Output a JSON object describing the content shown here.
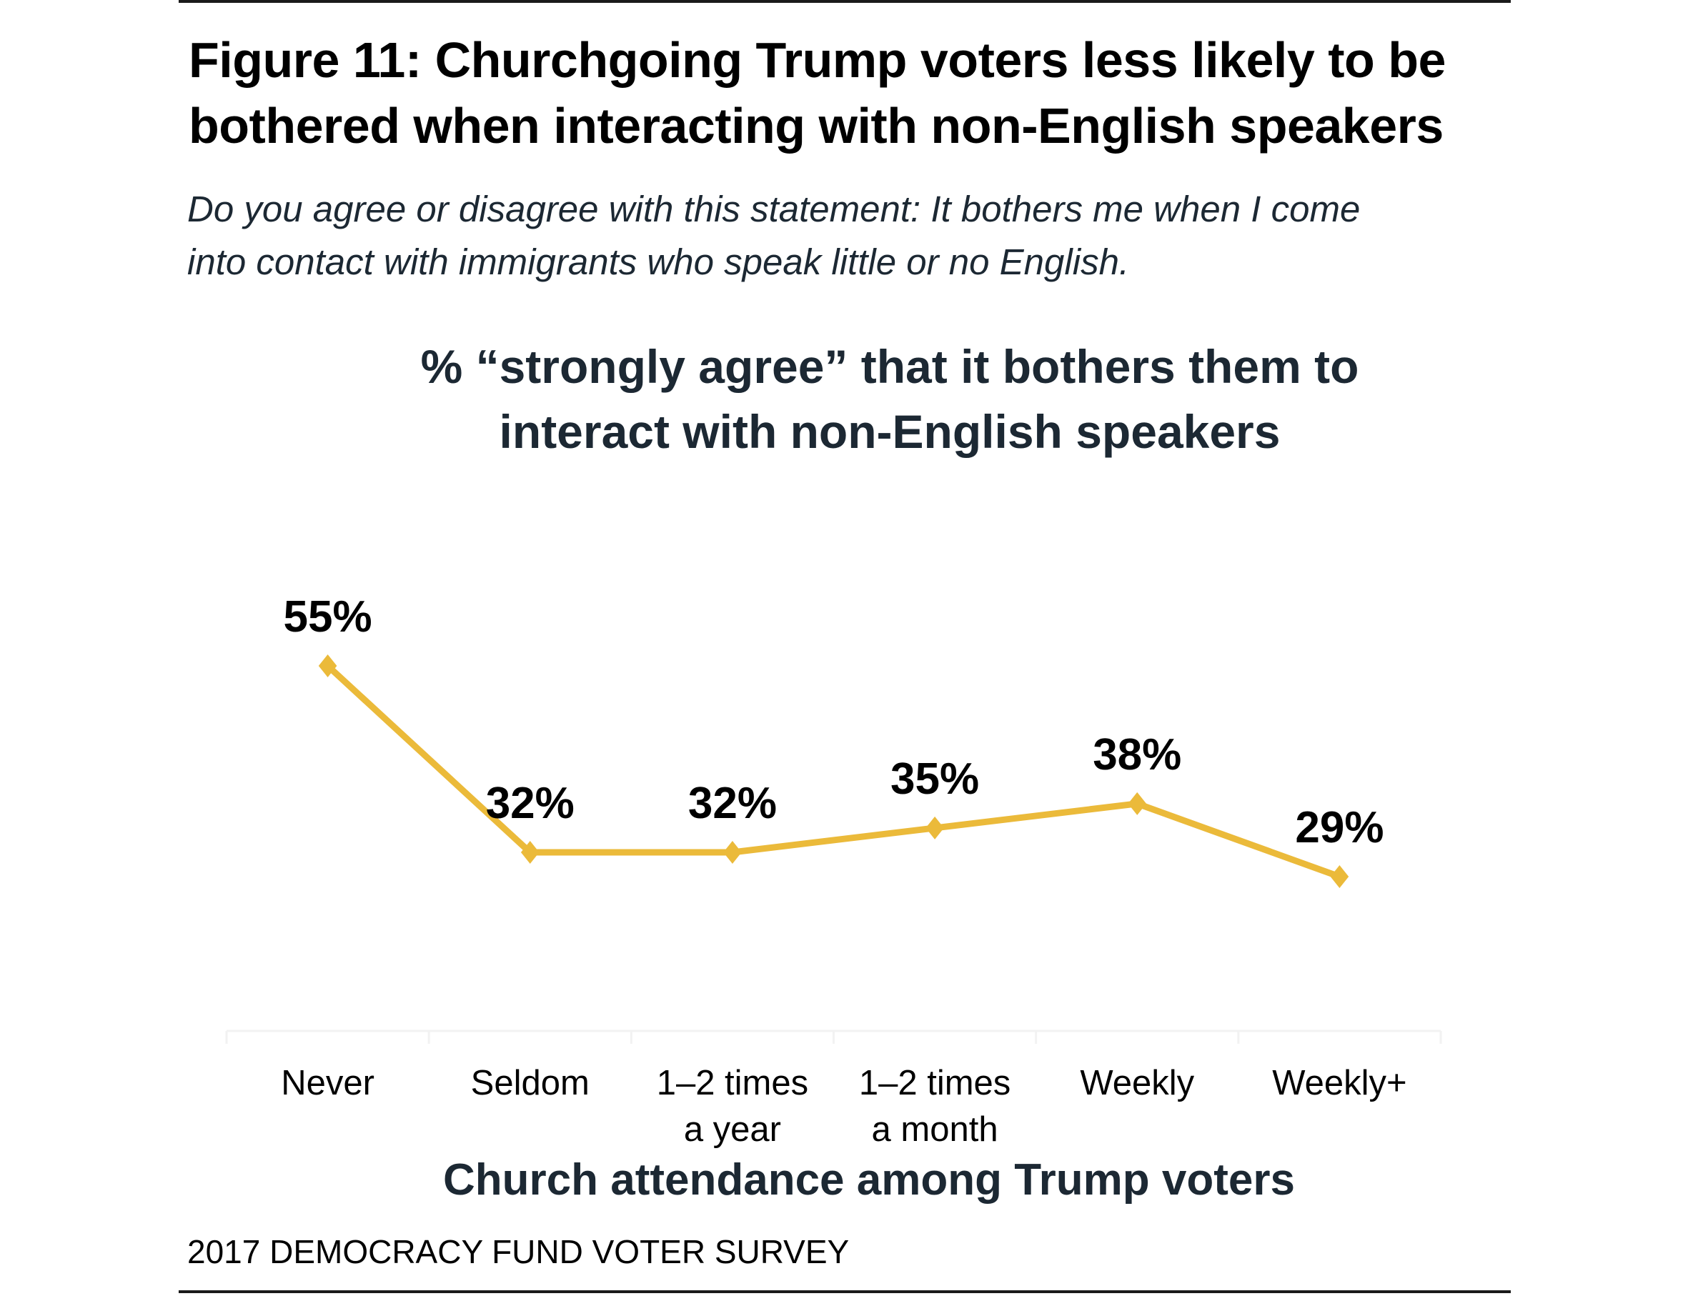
{
  "figure": {
    "title_lines": [
      "Figure 11: Churchgoing Trump voters less likely to be",
      "bothered when interacting with non-English speakers"
    ],
    "question_lines": [
      "Do you agree or disagree with this statement: It bothers me when I come",
      "into contact with immigrants who speak little or no English."
    ],
    "source": "2017 DEMOCRACY FUND VOTER SURVEY"
  },
  "chart_data": {
    "type": "line",
    "title": "% “strongly agree” that it bothers them to interact with non-English speakers",
    "title_lines": [
      "% “strongly agree” that it bothers them to",
      "interact with non-English speakers"
    ],
    "xlabel": "Church attendance among Trump voters",
    "ylabel": "",
    "categories": [
      "Never",
      "Seldom",
      "1–2 times a year",
      "1–2 times a month",
      "Weekly",
      "Weekly+"
    ],
    "category_label_lines": [
      [
        "Never"
      ],
      [
        "Seldom"
      ],
      [
        "1–2 times",
        "a year"
      ],
      [
        "1–2 times",
        "a month"
      ],
      [
        "Weekly"
      ],
      [
        "Weekly+"
      ]
    ],
    "series": [
      {
        "name": "% strongly agree",
        "values": [
          55,
          32,
          32,
          35,
          38,
          29
        ],
        "color": "#EBBA3A",
        "marker": "diamond"
      }
    ],
    "data_labels": [
      "55%",
      "32%",
      "32%",
      "35%",
      "38%",
      "29%"
    ],
    "ylim": [
      10,
      60
    ],
    "grid": false,
    "legend": "none",
    "axis_color": "#f2f2f2"
  }
}
